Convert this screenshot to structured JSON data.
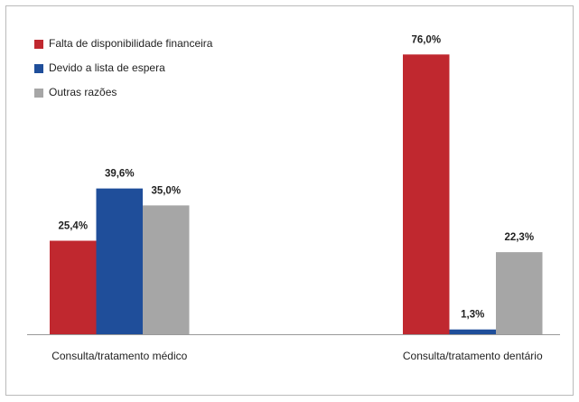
{
  "chart_data": {
    "type": "bar",
    "categories": [
      "Consulta/tratamento médico",
      "Consulta/tratamento dentário"
    ],
    "series": [
      {
        "name": "Falta de disponibilidade financeira",
        "color": "#c0282f",
        "values": [
          25.4,
          76.0
        ],
        "value_labels": [
          "25,4%",
          "76,0%"
        ]
      },
      {
        "name": "Devido a lista de espera",
        "color": "#1f4e9a",
        "values": [
          39.6,
          1.3
        ],
        "value_labels": [
          "39,6%",
          "1,3%"
        ]
      },
      {
        "name": "Outras razões",
        "color": "#a6a6a6",
        "values": [
          35.0,
          22.3
        ],
        "value_labels": [
          "35,0%",
          "22,3%"
        ]
      }
    ],
    "ylim": [
      0,
      80
    ],
    "legend": "upper left"
  }
}
